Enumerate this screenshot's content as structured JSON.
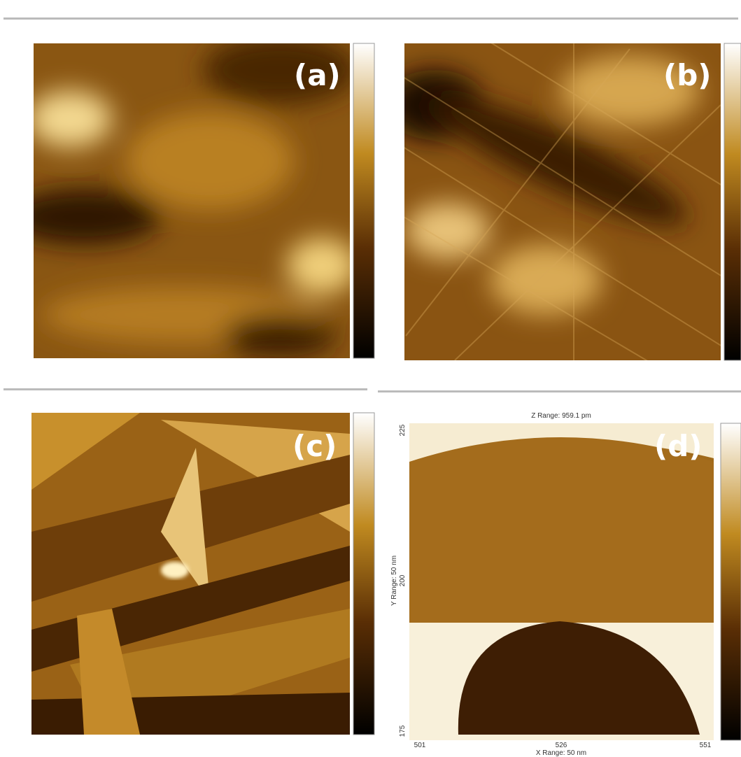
{
  "panels": [
    {
      "label": "(a)"
    },
    {
      "label": "(b)"
    },
    {
      "label": "(c)"
    },
    {
      "label": "(d)",
      "z_range": "Z Range: 959.1 pm",
      "x_ticks": [
        "501",
        "526",
        "551"
      ],
      "x_axis_label": "X Range: 50 nm",
      "y_ticks": [
        "225",
        "200",
        "175"
      ],
      "y_axis_label": "Y Range: 50 nm"
    }
  ]
}
